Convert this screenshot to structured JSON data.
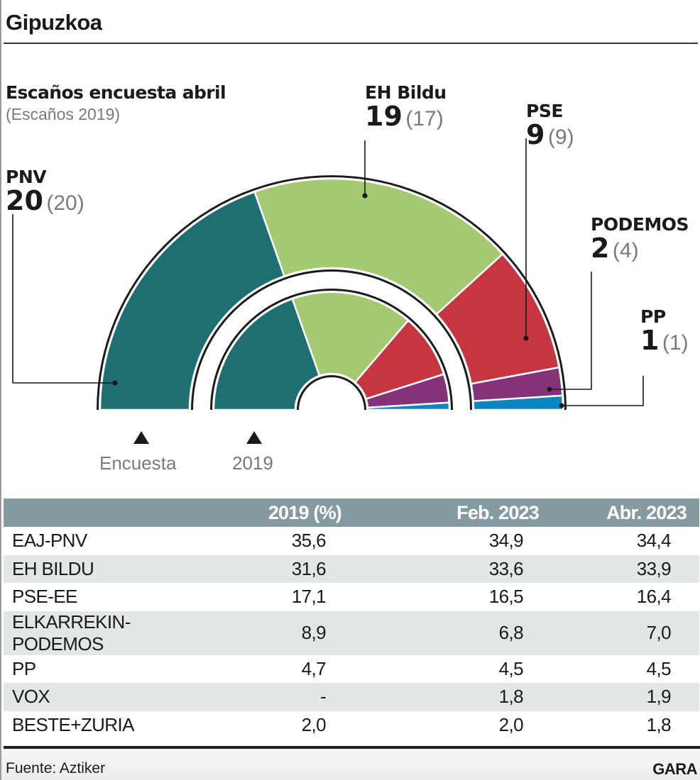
{
  "header": {
    "title": "Gipuzkoa"
  },
  "chart_data": {
    "type": "hemicycle",
    "title": "Escaños encuesta abril",
    "subtitle": "(Escaños 2019)",
    "total_seats": 51,
    "rings": [
      {
        "name": "Encuesta",
        "position": "outer"
      },
      {
        "name": "2019",
        "position": "inner"
      }
    ],
    "parties": [
      {
        "name": "PNV",
        "seats": 20,
        "seats_2019": 20,
        "color": "#1e6f72"
      },
      {
        "name": "EH Bildu",
        "seats": 19,
        "seats_2019": 17,
        "color": "#a5c873"
      },
      {
        "name": "PSE",
        "seats": 9,
        "seats_2019": 9,
        "color": "#c73540"
      },
      {
        "name": "PODEMOS",
        "seats": 2,
        "seats_2019": 4,
        "color": "#86327a"
      },
      {
        "name": "PP",
        "seats": 1,
        "seats_2019": 1,
        "color": "#0c86c0"
      }
    ],
    "ring_labels": [
      "Encuesta",
      "2019"
    ]
  },
  "table": {
    "headers": [
      "",
      "2019 (%)",
      "Feb. 2023",
      "Abr. 2023"
    ],
    "rows": [
      [
        "EAJ-PNV",
        "35,6",
        "34,9",
        "34,4"
      ],
      [
        "EH BILDU",
        "31,6",
        "33,6",
        "33,9"
      ],
      [
        "PSE-EE",
        "17,1",
        "16,5",
        "16,4"
      ],
      [
        "ELKARREKIN-PODEMOS",
        "8,9",
        "6,8",
        "7,0"
      ],
      [
        "PP",
        "4,7",
        "4,5",
        "4,5"
      ],
      [
        "VOX",
        "-",
        "1,8",
        "1,9"
      ],
      [
        "BESTE+ZURIA",
        "2,0",
        "2,0",
        "1,8"
      ]
    ]
  },
  "footer": {
    "source": "Fuente: Aztiker",
    "brand": "GARA"
  },
  "colors": {
    "table_header_bg": "#869aa1",
    "table_alt_row_bg": "#e3e6e6",
    "muted_text": "#7a7a7a"
  }
}
